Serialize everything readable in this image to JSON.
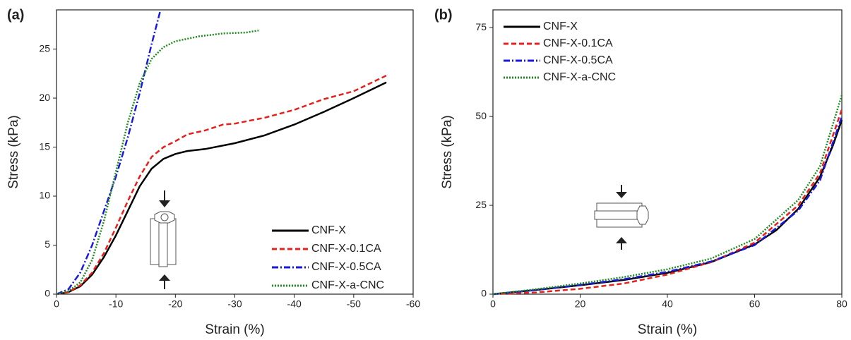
{
  "chart_data": [
    {
      "type": "line",
      "panel_label": "(a)",
      "x_label": "Strain (%)",
      "y_label": "Stress (kPa)",
      "xlim": [
        0,
        -60
      ],
      "xticks": [
        0,
        -10,
        -20,
        -30,
        -40,
        -50,
        -60
      ],
      "ylim": [
        0,
        29
      ],
      "yticks": [
        0,
        5,
        10,
        15,
        20,
        25
      ],
      "legend": "lower right",
      "series": [
        {
          "name": "CNF-X",
          "color": "#000000",
          "style": "solid",
          "x": [
            0,
            -2,
            -4,
            -6,
            -8,
            -10,
            -12,
            -14,
            -16,
            -18,
            -20,
            -22,
            -25,
            -30,
            -35,
            -40,
            -45,
            -50,
            -55.5
          ],
          "values": [
            0,
            0.2,
            0.8,
            2,
            3.8,
            6,
            8.5,
            11,
            12.8,
            13.8,
            14.3,
            14.6,
            14.8,
            15.4,
            16.2,
            17.3,
            18.6,
            20,
            21.6
          ]
        },
        {
          "name": "CNF-X-0.1CA",
          "color": "#e8201c",
          "style": "dashed",
          "x": [
            0,
            -2,
            -4,
            -6,
            -8,
            -10,
            -12,
            -14,
            -16,
            -18,
            -20,
            -22,
            -25,
            -28,
            -30,
            -35,
            -40,
            -45,
            -50,
            -55.5
          ],
          "values": [
            0,
            0.2,
            0.9,
            2.2,
            4.2,
            6.8,
            9.5,
            12,
            14,
            15,
            15.6,
            16.3,
            16.7,
            17.3,
            17.4,
            18,
            18.8,
            19.9,
            20.7,
            22.3
          ]
        },
        {
          "name": "CNF-X-0.5CA",
          "color": "#1a1adc",
          "style": "dashdot",
          "x": [
            0,
            -2,
            -4,
            -6,
            -8,
            -10,
            -12,
            -14,
            -16,
            -17.5
          ],
          "values": [
            0,
            0.5,
            2.2,
            5,
            8.5,
            12,
            16,
            20.5,
            25.5,
            29
          ]
        },
        {
          "name": "CNF-X-a-CNC",
          "color": "#1e8c1e",
          "style": "dotted",
          "x": [
            0,
            -2,
            -4,
            -6,
            -8,
            -10,
            -12,
            -14,
            -16,
            -18,
            -20,
            -24,
            -28,
            -32,
            -34
          ],
          "values": [
            0,
            0.3,
            1.2,
            3.5,
            7.5,
            12.5,
            17.5,
            21.5,
            24,
            25.2,
            25.8,
            26.3,
            26.6,
            26.7,
            26.9
          ]
        }
      ]
    },
    {
      "type": "line",
      "panel_label": "(b)",
      "x_label": "Strain (%)",
      "y_label": "Stress (kPa)",
      "xlim": [
        0,
        80
      ],
      "xticks": [
        0,
        20,
        40,
        60,
        80
      ],
      "ylim": [
        0,
        80
      ],
      "yticks": [
        0,
        25,
        50,
        75
      ],
      "legend": "upper left",
      "series": [
        {
          "name": "CNF-X",
          "color": "#000000",
          "style": "solid",
          "x": [
            0,
            10,
            20,
            30,
            40,
            50,
            60,
            65,
            70,
            75,
            78,
            80
          ],
          "values": [
            0,
            1.2,
            2.5,
            4,
            6,
            9,
            14,
            18,
            24,
            33,
            42,
            49
          ]
        },
        {
          "name": "CNF-X-0.1CA",
          "color": "#e8201c",
          "style": "dashed",
          "x": [
            0,
            10,
            20,
            30,
            40,
            50,
            60,
            70,
            75,
            80
          ],
          "values": [
            0,
            0.5,
            1.5,
            3,
            5.5,
            9,
            14.5,
            25,
            34,
            52
          ]
        },
        {
          "name": "CNF-X-0.5CA",
          "color": "#1a1adc",
          "style": "dashdot",
          "x": [
            0,
            10,
            20,
            30,
            40,
            50,
            60,
            70,
            75,
            80
          ],
          "values": [
            0,
            1.2,
            2.6,
            4.2,
            6.3,
            9.2,
            13.8,
            23.5,
            32,
            50
          ]
        },
        {
          "name": "CNF-X-a-CNC",
          "color": "#1e8c1e",
          "style": "dotted",
          "x": [
            0,
            10,
            20,
            30,
            40,
            50,
            60,
            70,
            75,
            80
          ],
          "values": [
            0,
            1.4,
            3,
            4.8,
            7,
            10,
            15.5,
            26.5,
            36,
            56
          ]
        }
      ]
    }
  ]
}
